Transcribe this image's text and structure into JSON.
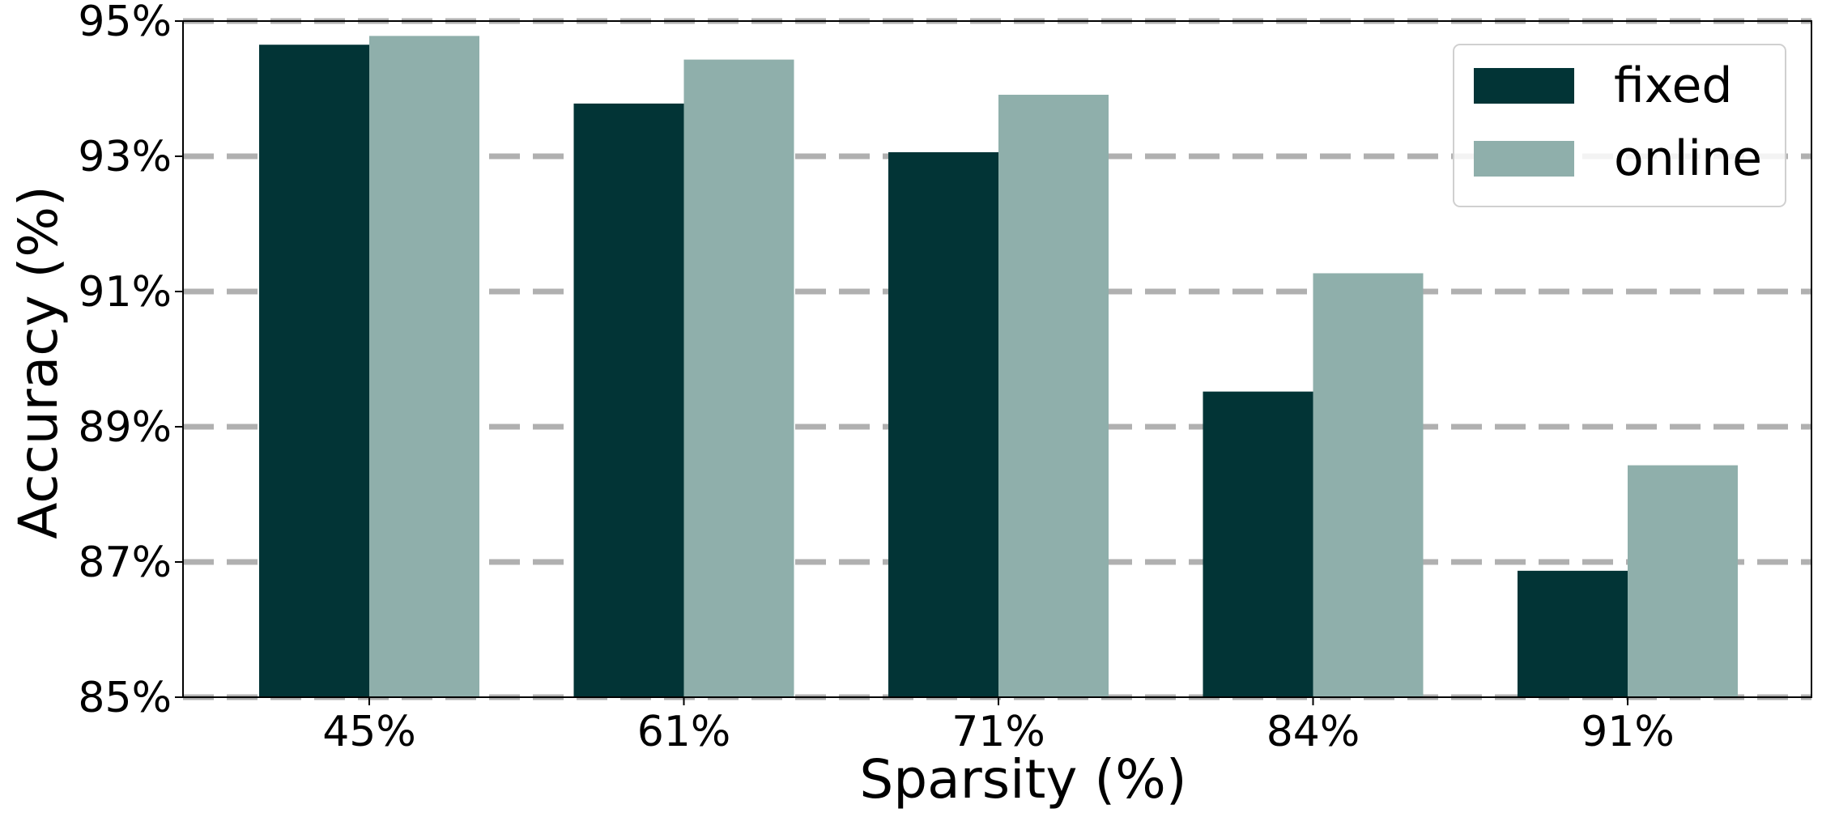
{
  "chart_data": {
    "type": "bar",
    "title": "",
    "xlabel": "Sparsity (%)",
    "ylabel": "Accuracy (%)",
    "categories": [
      "45%",
      "61%",
      "71%",
      "84%",
      "91%"
    ],
    "series": [
      {
        "name": "fixed",
        "color": "#023436",
        "values": [
          94.65,
          93.78,
          93.06,
          89.52,
          86.87
        ]
      },
      {
        "name": "online",
        "color": "#8fafab",
        "values": [
          94.78,
          94.43,
          93.91,
          91.27,
          88.43
        ]
      }
    ],
    "ylim": [
      85,
      95
    ],
    "yticks": [
      85,
      87,
      89,
      91,
      93,
      95
    ],
    "ytick_labels": [
      "85%",
      "87%",
      "89%",
      "91%",
      "93%",
      "95%"
    ],
    "grid": {
      "axis": "y",
      "style": "dashed",
      "color": "#b0b0b0"
    },
    "legend": {
      "position": "top-right"
    }
  }
}
